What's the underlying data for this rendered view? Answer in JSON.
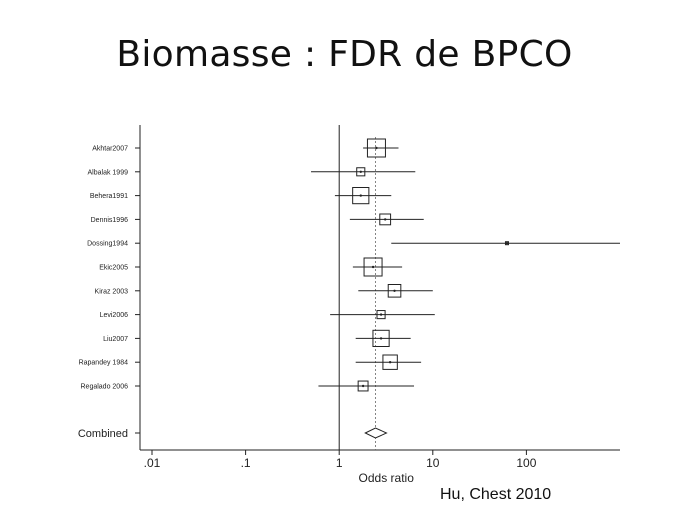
{
  "slide": {
    "title": "Biomasse : FDR de BPCO",
    "citation": "Hu, Chest 2010"
  },
  "colors": {
    "ink": "#222222",
    "background": "#ffffff"
  },
  "chart_data": {
    "type": "forest",
    "xscale": "log",
    "xlabel": "Odds ratio",
    "xlim": [
      0.01,
      1000
    ],
    "x_ticks": [
      {
        "value": 0.01,
        "label": ".01"
      },
      {
        "value": 0.1,
        "label": ".1"
      },
      {
        "value": 1,
        "label": "1"
      },
      {
        "value": 10,
        "label": "10"
      },
      {
        "value": 100,
        "label": "100"
      }
    ],
    "null_line": 1,
    "studies": [
      {
        "label": "Akhtar2007",
        "or": 2.5,
        "ci": [
          1.8,
          4.3
        ],
        "weight": 1.0
      },
      {
        "label": "Albalak 1999",
        "or": 1.7,
        "ci": [
          0.5,
          6.5
        ],
        "weight": 0.45
      },
      {
        "label": "Behera1991",
        "or": 1.7,
        "ci": [
          0.9,
          3.6
        ],
        "weight": 0.9
      },
      {
        "label": "Dennis1996",
        "or": 3.1,
        "ci": [
          1.3,
          8.0
        ],
        "weight": 0.6
      },
      {
        "label": "Dossing1994",
        "or": 62,
        "ci": [
          3.6,
          1050
        ],
        "weight": 0.1
      },
      {
        "label": "Ekic2005",
        "or": 2.3,
        "ci": [
          1.4,
          4.7
        ],
        "weight": 1.0
      },
      {
        "label": "Kiraz 2003",
        "or": 3.9,
        "ci": [
          1.6,
          10.0
        ],
        "weight": 0.7
      },
      {
        "label": "Levi2006",
        "or": 2.8,
        "ci": [
          0.8,
          10.5
        ],
        "weight": 0.45
      },
      {
        "label": "Liu2007",
        "or": 2.8,
        "ci": [
          1.5,
          5.8
        ],
        "weight": 0.9
      },
      {
        "label": "Rapandey 1984",
        "or": 3.5,
        "ci": [
          1.5,
          7.5
        ],
        "weight": 0.8
      },
      {
        "label": "Regalado 2006",
        "or": 1.8,
        "ci": [
          0.6,
          6.3
        ],
        "weight": 0.55
      }
    ],
    "combined": {
      "label": "Combined",
      "or": 2.44,
      "ci": [
        1.9,
        3.2
      ]
    }
  }
}
